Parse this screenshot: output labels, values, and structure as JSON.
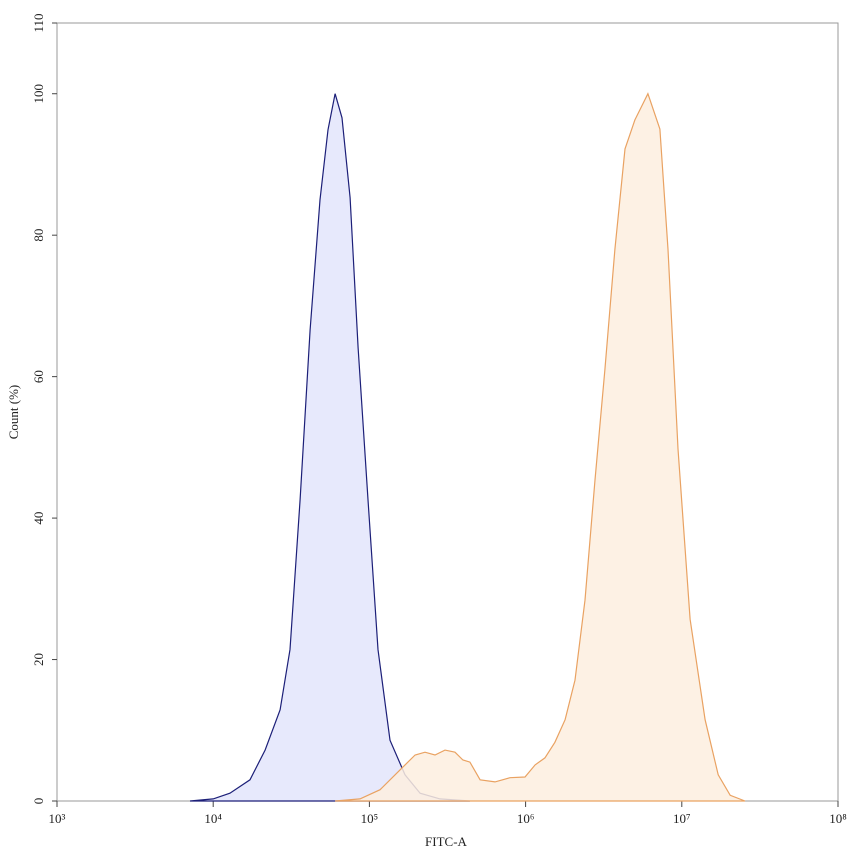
{
  "chart_data": {
    "type": "histogram-overlay",
    "x_label": "FITC-A",
    "y_label": "Count (%)",
    "xscale": "log",
    "xlim": [
      1000,
      100000000
    ],
    "xticks": [
      {
        "value": 1000,
        "label": "10³"
      },
      {
        "value": 10000,
        "label": "10⁴"
      },
      {
        "value": 100000,
        "label": "10⁵"
      },
      {
        "value": 1000000,
        "label": "10⁶"
      },
      {
        "value": 10000000,
        "label": "10⁷"
      },
      {
        "value": 100000000,
        "label": "10⁸"
      }
    ],
    "ylim": [
      0,
      110
    ],
    "yticks": [
      0,
      20,
      40,
      60,
      80,
      100,
      110
    ],
    "series": [
      {
        "color": "#1c1f78",
        "fill": "#e3e5fb",
        "x": [
          7100,
          10000,
          12800,
          17200,
          21500,
          26800,
          31000,
          36000,
          41700,
          48300,
          54300,
          60300,
          66800,
          75200,
          84600,
          98000,
          113500,
          135500,
          169000,
          211000,
          283000,
          440000
        ],
        "values": [
          0,
          0.3,
          1.1,
          3.0,
          7.2,
          12.9,
          21.4,
          42.6,
          66.6,
          85,
          94.9,
          100,
          96.6,
          85.3,
          64.1,
          42.6,
          21.4,
          8.6,
          3.7,
          1.1,
          0.3,
          0
        ]
      },
      {
        "color": "#e9a262",
        "fill": "#fdeedf",
        "x": [
          60300,
          87100,
          117000,
          157000,
          196000,
          227000,
          263000,
          305000,
          353000,
          397000,
          440000,
          511000,
          637000,
          794000,
          991000,
          1150000,
          1330000,
          1540000,
          1790000,
          2070000,
          2400000,
          2780000,
          3220000,
          3730000,
          4330000,
          5010000,
          6070000,
          7240000,
          8160000,
          9460000,
          11300000,
          14100000,
          17100000,
          20400000,
          25400000
        ],
        "values": [
          0,
          0.3,
          1.6,
          4.4,
          6.5,
          6.9,
          6.5,
          7.2,
          6.9,
          5.8,
          5.5,
          3.0,
          2.7,
          3.3,
          3.4,
          5.1,
          6.1,
          8.3,
          11.5,
          17.1,
          28.4,
          45.4,
          61.0,
          78.0,
          92.2,
          96.3,
          100,
          95.0,
          78.0,
          49.8,
          25.7,
          11.5,
          3.7,
          0.8,
          0
        ]
      }
    ]
  }
}
